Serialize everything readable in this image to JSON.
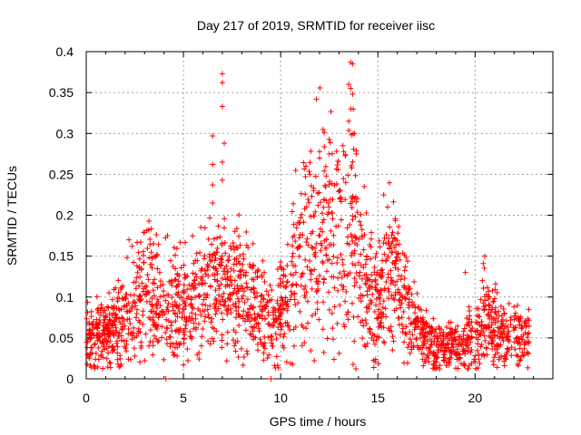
{
  "chart_data": {
    "type": "scatter",
    "title": "Day 217 of 2019, SRMTID for receiver iisc",
    "xlabel": "GPS time / hours",
    "ylabel": "SRMTID / TECUs",
    "xlim": [
      0,
      24
    ],
    "ylim": [
      0,
      0.4
    ],
    "xticks": [
      0,
      5,
      10,
      15,
      20
    ],
    "yticks": [
      0,
      0.05,
      0.1,
      0.15,
      0.2,
      0.25,
      0.3,
      0.35,
      0.4
    ],
    "grid": true,
    "marker": "+",
    "series_color": "#ff0000",
    "trend": [
      {
        "x": 0.0,
        "y": 0.05
      },
      {
        "x": 1.0,
        "y": 0.055
      },
      {
        "x": 2.0,
        "y": 0.075
      },
      {
        "x": 2.5,
        "y": 0.1
      },
      {
        "x": 3.0,
        "y": 0.11
      },
      {
        "x": 4.0,
        "y": 0.09
      },
      {
        "x": 5.0,
        "y": 0.09
      },
      {
        "x": 6.0,
        "y": 0.1
      },
      {
        "x": 7.0,
        "y": 0.11
      },
      {
        "x": 8.0,
        "y": 0.1
      },
      {
        "x": 9.0,
        "y": 0.08
      },
      {
        "x": 9.5,
        "y": 0.075
      },
      {
        "x": 10.0,
        "y": 0.08
      },
      {
        "x": 10.5,
        "y": 0.11
      },
      {
        "x": 11.0,
        "y": 0.15
      },
      {
        "x": 12.0,
        "y": 0.18
      },
      {
        "x": 13.0,
        "y": 0.17
      },
      {
        "x": 13.5,
        "y": 0.2
      },
      {
        "x": 14.0,
        "y": 0.16
      },
      {
        "x": 14.5,
        "y": 0.1
      },
      {
        "x": 15.0,
        "y": 0.09
      },
      {
        "x": 15.5,
        "y": 0.13
      },
      {
        "x": 16.0,
        "y": 0.12
      },
      {
        "x": 17.0,
        "y": 0.06
      },
      {
        "x": 18.0,
        "y": 0.04
      },
      {
        "x": 19.0,
        "y": 0.04
      },
      {
        "x": 20.0,
        "y": 0.045
      },
      {
        "x": 20.5,
        "y": 0.08
      },
      {
        "x": 21.0,
        "y": 0.06
      },
      {
        "x": 22.0,
        "y": 0.05
      },
      {
        "x": 22.8,
        "y": 0.05
      }
    ],
    "point_count": 2200,
    "spikes": [
      {
        "x": 7.0,
        "y": 0.373
      },
      {
        "x": 7.0,
        "y": 0.362
      },
      {
        "x": 7.0,
        "y": 0.333
      },
      {
        "x": 6.5,
        "y": 0.297
      },
      {
        "x": 7.1,
        "y": 0.288
      },
      {
        "x": 7.0,
        "y": 0.265
      },
      {
        "x": 6.5,
        "y": 0.262
      },
      {
        "x": 7.0,
        "y": 0.243
      },
      {
        "x": 6.5,
        "y": 0.237
      },
      {
        "x": 6.5,
        "y": 0.215
      },
      {
        "x": 13.6,
        "y": 0.387
      },
      {
        "x": 13.7,
        "y": 0.385
      },
      {
        "x": 13.5,
        "y": 0.36
      },
      {
        "x": 13.7,
        "y": 0.348
      },
      {
        "x": 13.6,
        "y": 0.33
      },
      {
        "x": 13.5,
        "y": 0.315
      },
      {
        "x": 13.8,
        "y": 0.3
      },
      {
        "x": 13.2,
        "y": 0.285
      },
      {
        "x": 13.9,
        "y": 0.275
      },
      {
        "x": 12.0,
        "y": 0.27
      },
      {
        "x": 12.5,
        "y": 0.275
      },
      {
        "x": 11.5,
        "y": 0.25
      },
      {
        "x": 15.3,
        "y": 0.225
      },
      {
        "x": 15.5,
        "y": 0.21
      },
      {
        "x": 10.0,
        "y": 0.143
      },
      {
        "x": 2.2,
        "y": 0.17
      },
      {
        "x": 20.5,
        "y": 0.15
      },
      {
        "x": 19.5,
        "y": 0.13
      },
      {
        "x": 21.0,
        "y": 0.098
      },
      {
        "x": 22.0,
        "y": 0.088
      }
    ],
    "zero_markers": [
      {
        "x": 4.1,
        "y": 0.0
      },
      {
        "x": 9.5,
        "y": 0.0
      }
    ]
  }
}
